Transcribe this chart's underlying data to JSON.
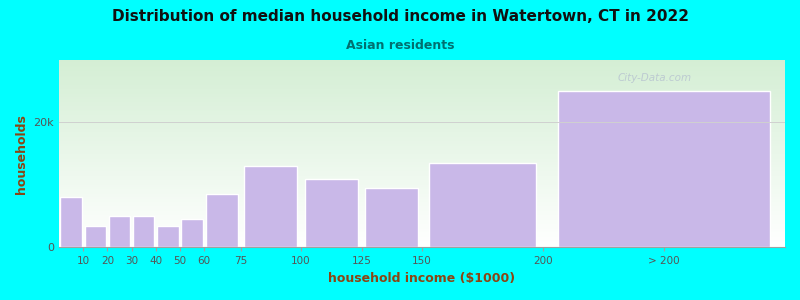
{
  "title": "Distribution of median household income in Watertown, CT in 2022",
  "subtitle": "Asian residents",
  "xlabel": "household income ($1000)",
  "ylabel": "households",
  "background_color": "#00FFFF",
  "bar_color": "#C9B8E8",
  "bar_edge_color": "#ffffff",
  "title_color": "#111111",
  "subtitle_color": "#007070",
  "axis_label_color": "#8B4513",
  "tick_label_color": "#555555",
  "watermark": "City-Data.com",
  "grid_color": "#d0d0d0",
  "grad_top": "#d4eed4",
  "grad_bottom": "#ffffff",
  "bar_left_edges": [
    0,
    10,
    20,
    30,
    40,
    50,
    60,
    75,
    100,
    125,
    150,
    200
  ],
  "bar_widths": [
    10,
    10,
    10,
    10,
    10,
    10,
    15,
    25,
    25,
    25,
    50,
    100
  ],
  "values": [
    8000,
    3500,
    5000,
    5000,
    3500,
    4500,
    8500,
    13000,
    11000,
    9500,
    13500,
    25000
  ],
  "tick_positions": [
    10,
    20,
    30,
    40,
    50,
    60,
    75,
    100,
    125,
    150,
    200,
    250
  ],
  "tick_labels": [
    "10",
    "20",
    "30",
    "40",
    "50",
    "60",
    "75",
    "100",
    "125",
    "150",
    "200",
    "> 200"
  ],
  "yticks": [
    0,
    20000
  ],
  "ytick_labels": [
    "0",
    "20k"
  ],
  "xlim": [
    0,
    300
  ],
  "ylim": [
    0,
    30000
  ]
}
